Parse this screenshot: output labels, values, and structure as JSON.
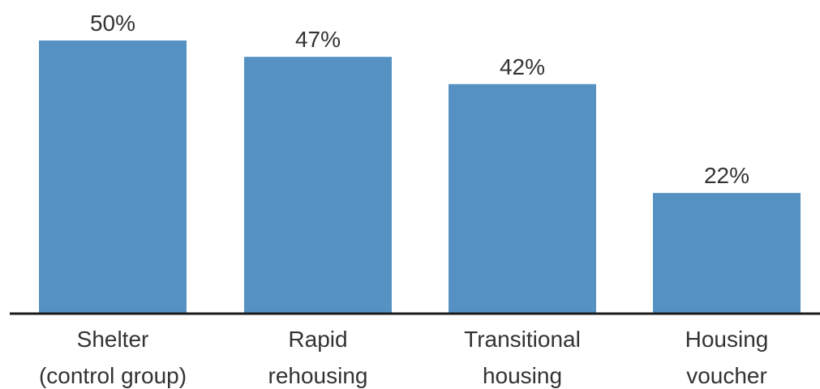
{
  "chart_data": {
    "type": "bar",
    "categories": [
      [
        "Shelter",
        "(control group)"
      ],
      [
        "Rapid",
        "rehousing"
      ],
      [
        "Transitional",
        "housing"
      ],
      [
        "Housing",
        "voucher"
      ]
    ],
    "values": [
      50,
      47,
      42,
      22
    ],
    "value_labels": [
      "50%",
      "47%",
      "42%",
      "22%"
    ],
    "ylim": [
      0,
      60
    ],
    "grid": false,
    "bar_color": "#5592c3",
    "axis_color": "#1a1a1a"
  }
}
